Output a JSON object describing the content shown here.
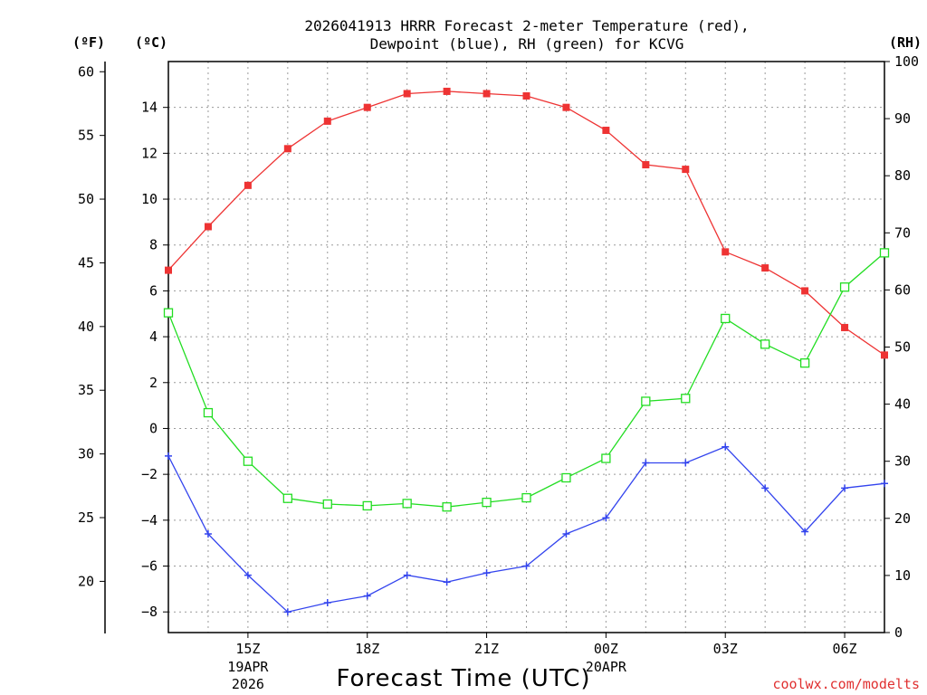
{
  "title_line1": "2026041913 HRRR Forecast 2-meter Temperature (red),",
  "title_line2": "Dewpoint (blue), RH (green) for KCVG",
  "unit_f": "(ºF)",
  "unit_c": "(ºC)",
  "unit_rh": "(RH)",
  "xlabel": "Forecast Time (UTC)",
  "credit": "coolwx.com/modelts",
  "colors": {
    "temperature": "#ee3333",
    "dewpoint": "#3344ee",
    "rh": "#22dd22",
    "credit": "#e03030"
  },
  "chart_data": {
    "type": "line",
    "title": "2026041913 HRRR Forecast 2-meter Temperature (red), Dewpoint (blue), RH (green) for KCVG",
    "xlabel": "Forecast Time (UTC)",
    "x_hours": [
      13,
      14,
      15,
      16,
      17,
      18,
      19,
      20,
      21,
      22,
      23,
      24,
      25,
      26,
      27,
      28,
      29,
      30,
      31
    ],
    "xlim": [
      13,
      31
    ],
    "x_ticks": [
      {
        "hour": 15,
        "label": "15Z",
        "sub": [
          "19APR",
          "2026"
        ]
      },
      {
        "hour": 18,
        "label": "18Z",
        "sub": []
      },
      {
        "hour": 21,
        "label": "21Z",
        "sub": []
      },
      {
        "hour": 24,
        "label": "00Z",
        "sub": [
          "20APR"
        ]
      },
      {
        "hour": 27,
        "label": "03Z",
        "sub": []
      },
      {
        "hour": 30,
        "label": "06Z",
        "sub": []
      }
    ],
    "left_axis_c": {
      "ylim": [
        -8.9,
        16
      ],
      "ticks": [
        14,
        12,
        10,
        8,
        6,
        4,
        2,
        0,
        -2,
        -4,
        -6,
        -8
      ],
      "tick_labels": [
        "14",
        "12",
        "10",
        "8",
        "6",
        "4",
        "2",
        "0",
        "−2",
        "−4",
        "−6",
        "−8"
      ]
    },
    "left_axis_f": {
      "ticks": [
        60,
        55,
        50,
        45,
        40,
        35,
        30,
        25,
        20
      ],
      "tick_labels": [
        "60",
        "55",
        "50",
        "45",
        "40",
        "35",
        "30",
        "25",
        "20"
      ]
    },
    "right_axis_rh": {
      "ylim": [
        0,
        100
      ],
      "ticks": [
        100,
        90,
        80,
        70,
        60,
        50,
        40,
        30,
        20,
        10,
        0
      ],
      "tick_labels": [
        "100",
        "90",
        "80",
        "70",
        "60",
        "50",
        "40",
        "30",
        "20",
        "10",
        "0"
      ]
    },
    "series": [
      {
        "name": "Temperature",
        "units": "C",
        "axis": "left",
        "marker": "filled-square",
        "values": [
          6.9,
          8.8,
          10.6,
          12.2,
          13.4,
          14.0,
          14.6,
          14.7,
          14.6,
          14.5,
          14.0,
          13.0,
          11.5,
          11.3,
          7.7,
          7.0,
          6.0,
          4.4,
          3.2
        ]
      },
      {
        "name": "Dewpoint",
        "units": "C",
        "axis": "left",
        "marker": "plus",
        "values": [
          -1.2,
          -4.6,
          -6.4,
          -8.0,
          -7.6,
          -7.3,
          -6.4,
          -6.7,
          -6.3,
          -6.0,
          -4.6,
          -3.9,
          -1.5,
          -1.5,
          -0.8,
          -2.6,
          -4.5,
          -2.6,
          -2.4
        ]
      },
      {
        "name": "RH",
        "units": "%",
        "axis": "right",
        "marker": "open-square",
        "values": [
          56,
          38.5,
          30,
          23.5,
          22.5,
          22.2,
          22.6,
          22.0,
          22.8,
          23.6,
          27.1,
          30.5,
          40.5,
          41,
          55,
          50.5,
          47.2,
          60.5,
          66.5
        ]
      }
    ]
  }
}
